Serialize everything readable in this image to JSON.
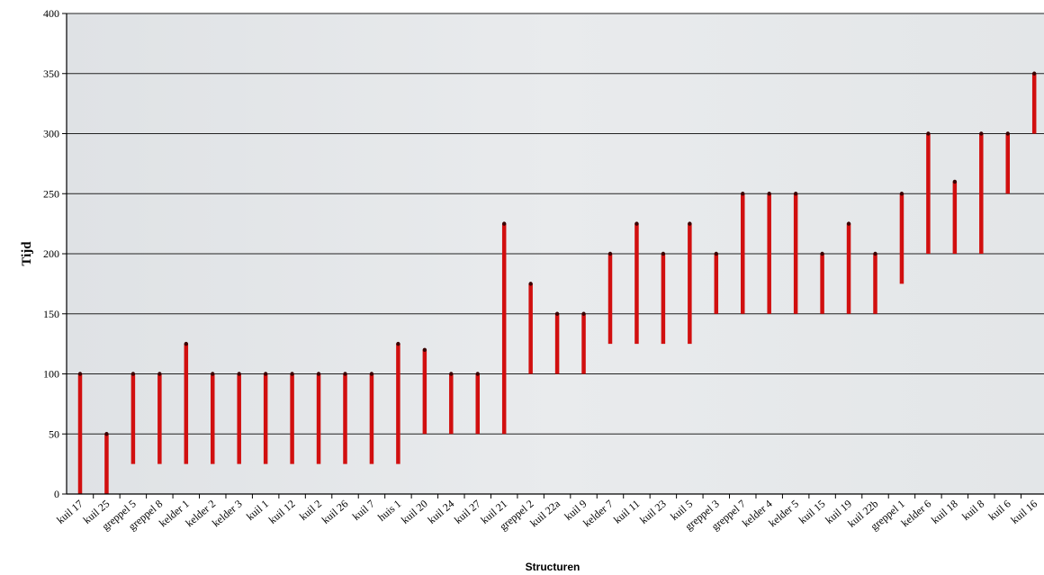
{
  "chart_data": {
    "type": "range-bar",
    "xlabel": "Structuren",
    "ylabel": "Tijd",
    "ylim": [
      0,
      400
    ],
    "yticks": [
      0,
      50,
      100,
      150,
      200,
      250,
      300,
      350,
      400
    ],
    "grid": true,
    "categories": [
      "kuil 17",
      "kuil 25",
      "greppel 5",
      "greppel 8",
      "kelder 1",
      "kelder 2",
      "kelder 3",
      "kuil 1",
      "kuil 12",
      "kuil 2",
      "kuil 26",
      "kuil 7",
      "huis 1",
      "kuil 20",
      "kuil 24",
      "kuil 27",
      "kuil 21",
      "greppel 2",
      "kuil 22a",
      "kuil 9",
      "kelder 7",
      "kuil 11",
      "kuil 23",
      "kuil 5",
      "greppel 3",
      "greppel 7",
      "kelder 4",
      "kelder 5",
      "kuil 15",
      "kuil 19",
      "kuil 22b",
      "greppel 1",
      "kelder 6",
      "kuil 18",
      "kuil 8",
      "kuil 6",
      "kuil 16"
    ],
    "ranges": [
      [
        0,
        100
      ],
      [
        0,
        50
      ],
      [
        25,
        100
      ],
      [
        25,
        100
      ],
      [
        25,
        125
      ],
      [
        25,
        100
      ],
      [
        25,
        100
      ],
      [
        25,
        100
      ],
      [
        25,
        100
      ],
      [
        25,
        100
      ],
      [
        25,
        100
      ],
      [
        25,
        100
      ],
      [
        25,
        125
      ],
      [
        50,
        120
      ],
      [
        50,
        100
      ],
      [
        50,
        100
      ],
      [
        50,
        225
      ],
      [
        100,
        175
      ],
      [
        100,
        150
      ],
      [
        100,
        150
      ],
      [
        125,
        200
      ],
      [
        125,
        225
      ],
      [
        125,
        200
      ],
      [
        125,
        225
      ],
      [
        150,
        200
      ],
      [
        150,
        250
      ],
      [
        150,
        250
      ],
      [
        150,
        250
      ],
      [
        150,
        200
      ],
      [
        150,
        225
      ],
      [
        150,
        200
      ],
      [
        175,
        250
      ],
      [
        200,
        300
      ],
      [
        200,
        260
      ],
      [
        200,
        300
      ],
      [
        250,
        300
      ],
      [
        300,
        350
      ]
    ],
    "colors": {
      "bar": "#d10f0f",
      "cap": "#3a0000",
      "grid": "#222222",
      "plot_bg": "#e4e7ea"
    }
  }
}
